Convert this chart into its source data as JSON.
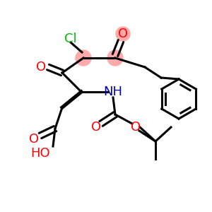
{
  "background": "#ffffff",
  "bond_color": "#000000",
  "bond_width": 2.2,
  "atom_colors": {
    "O": "#ff0000",
    "N": "#0000cc",
    "Cl": "#00bb00",
    "highlight": "#ffaaaa"
  },
  "font_size_atom": 13,
  "fig_size": [
    3.0,
    3.0
  ],
  "dpi": 100
}
